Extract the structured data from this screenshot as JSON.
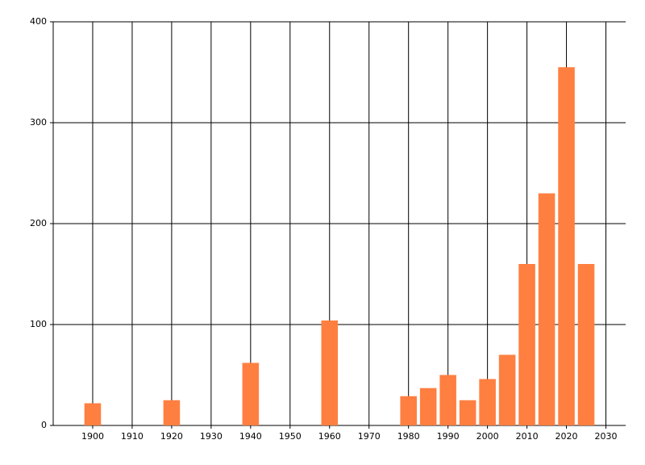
{
  "chart_data": {
    "type": "bar",
    "x": [
      1900,
      1920,
      1940,
      1960,
      1980,
      1985,
      1990,
      1995,
      2000,
      2005,
      2010,
      2015,
      2020,
      2025
    ],
    "values": [
      22,
      25,
      62,
      104,
      29,
      37,
      50,
      25,
      46,
      70,
      160,
      230,
      355,
      160
    ],
    "color": "#ff7f40",
    "xlim": [
      1890,
      2035
    ],
    "xticks": [
      1900,
      1910,
      1920,
      1930,
      1940,
      1950,
      1960,
      1970,
      1980,
      1990,
      2000,
      2010,
      2020,
      2030
    ],
    "ylim": [
      0,
      400
    ],
    "yticks": [
      0,
      100,
      200,
      300,
      400
    ],
    "grid": true
  }
}
